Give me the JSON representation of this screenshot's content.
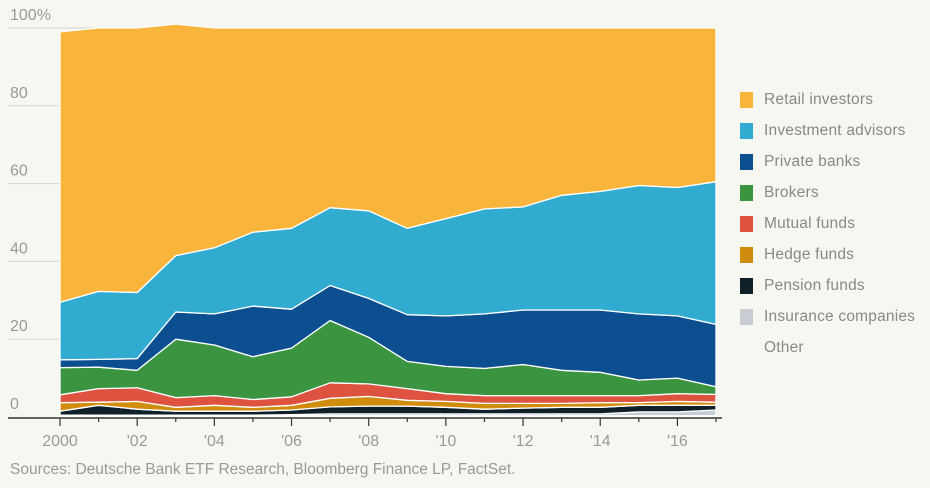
{
  "chart_data": {
    "type": "area",
    "stacked": true,
    "title": "",
    "xlabel": "",
    "ylabel": "",
    "x": [
      2000,
      2001,
      2002,
      2003,
      2004,
      2005,
      2006,
      2007,
      2008,
      2009,
      2010,
      2011,
      2012,
      2013,
      2014,
      2015,
      2016,
      2017
    ],
    "xlim": [
      2000,
      2017
    ],
    "ylim": [
      0,
      100
    ],
    "x_ticks": [
      2000,
      2002,
      2004,
      2006,
      2008,
      2010,
      2012,
      2014,
      2016
    ],
    "x_tick_labels": [
      "2000",
      "'02",
      "'04",
      "'06",
      "'08",
      "'10",
      "'12",
      "'14",
      "'16"
    ],
    "y_ticks": [
      0,
      20,
      40,
      60,
      80,
      100
    ],
    "y_tick_labels": [
      "0",
      "20",
      "40",
      "60",
      "80",
      "100%"
    ],
    "grid": "horizontal",
    "legend_position": "right",
    "series": [
      {
        "name": "Other",
        "color": "#f7f7f2",
        "values": [
          0.3,
          0.3,
          0.3,
          0.3,
          0.3,
          0.3,
          0.3,
          0.3,
          0.3,
          0.3,
          0.3,
          0.3,
          0.3,
          0.3,
          0.3,
          0.3,
          0.3,
          0.3
        ]
      },
      {
        "name": "Insurance companies",
        "color": "#c8cdd3",
        "values": [
          0.2,
          0.2,
          0.2,
          0.2,
          0.2,
          0.2,
          0.3,
          0.5,
          0.5,
          0.5,
          0.5,
          0.5,
          0.5,
          0.5,
          0.5,
          1.0,
          1.0,
          1.5
        ]
      },
      {
        "name": "Pension funds",
        "color": "#0f2028",
        "values": [
          1.0,
          2.5,
          1.5,
          1.0,
          1.0,
          1.0,
          1.2,
          1.8,
          2.0,
          2.0,
          1.7,
          1.2,
          1.5,
          1.7,
          1.7,
          1.7,
          1.7,
          1.2
        ]
      },
      {
        "name": "Hedge funds",
        "color": "#d08c0c",
        "values": [
          2.2,
          0.8,
          2.0,
          1.0,
          1.5,
          1.0,
          1.2,
          2.2,
          2.5,
          1.5,
          1.5,
          1.5,
          1.2,
          1.0,
          1.2,
          0.7,
          1.0,
          0.8
        ]
      },
      {
        "name": "Mutual funds",
        "color": "#dd5340",
        "values": [
          2.0,
          3.5,
          3.5,
          2.5,
          2.5,
          2.0,
          2.2,
          4.0,
          3.2,
          3.0,
          2.0,
          2.0,
          2.0,
          2.0,
          1.8,
          1.8,
          2.0,
          2.0
        ]
      },
      {
        "name": "Brokers",
        "color": "#3a9440",
        "values": [
          7.0,
          5.5,
          4.5,
          15.0,
          13.0,
          11.0,
          12.5,
          16.0,
          12.0,
          7.0,
          7.0,
          7.0,
          8.0,
          6.5,
          6.0,
          4.0,
          4.0,
          2.0
        ]
      },
      {
        "name": "Private banks",
        "color": "#0b4f91",
        "values": [
          2.0,
          2.0,
          3.0,
          7.0,
          8.0,
          13.0,
          10.0,
          9.0,
          10.0,
          12.0,
          13.0,
          14.0,
          14.0,
          15.5,
          16.0,
          17.0,
          16.0,
          16.0
        ]
      },
      {
        "name": "Investment advisors",
        "color": "#31acd0",
        "values": [
          14.8,
          17.5,
          17.0,
          14.5,
          17.0,
          19.0,
          20.8,
          20.0,
          22.5,
          22.2,
          25.0,
          27.0,
          26.5,
          29.5,
          30.5,
          33.0,
          33.0,
          36.7
        ]
      },
      {
        "name": "Retail investors",
        "color": "#f9b53b",
        "values": [
          69.5,
          67.7,
          68.0,
          59.5,
          56.5,
          52.5,
          51.5,
          46.2,
          47.0,
          51.5,
          49.0,
          46.5,
          46.0,
          43.0,
          42.0,
          40.5,
          41.0,
          39.5
        ]
      }
    ],
    "legend_order": [
      "Retail investors",
      "Investment advisors",
      "Private banks",
      "Brokers",
      "Mutual funds",
      "Hedge funds",
      "Pension funds",
      "Insurance companies",
      "Other"
    ]
  },
  "source": "Sources: Deutsche Bank ETF Research, Bloomberg Finance LP, FactSet."
}
